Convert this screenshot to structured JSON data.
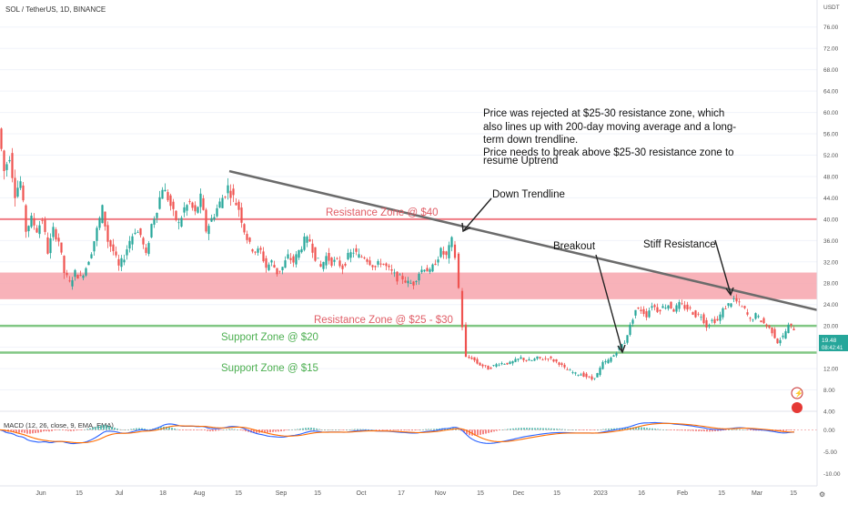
{
  "header": {
    "symbol_line": "SOL / TetherUS, 1D, BINANCE",
    "currency": "USDT"
  },
  "price_axis": {
    "ticks": [
      "76.00",
      "72.00",
      "68.00",
      "64.00",
      "60.00",
      "56.00",
      "52.00",
      "48.00",
      "44.00",
      "40.00",
      "36.00",
      "32.00",
      "28.00",
      "24.00",
      "20.00",
      "16.00",
      "12.00",
      "8.00",
      "4.00"
    ],
    "last_price": "19.48",
    "countdown": "08:42:41"
  },
  "macd_axis": {
    "ticks": [
      "0.00",
      "-5.00",
      "-10.00"
    ]
  },
  "time_axis": {
    "labels": [
      "Jun",
      "15",
      "Jul",
      "18",
      "Aug",
      "15",
      "Sep",
      "15",
      "Oct",
      "17",
      "Nov",
      "15",
      "Dec",
      "15",
      "2023",
      "16",
      "Feb",
      "15",
      "Mar",
      "15"
    ]
  },
  "annotations": {
    "main_note": [
      "Price was rejected at $25-30 resistance zone, which",
      "also lines up with 200-day moving average and a long-",
      "term down trendline.",
      "Price needs to break above $25-30 resistance zone to",
      "resume Uptrend"
    ],
    "down_trendline": "Down Trendline",
    "breakout": "Breakout",
    "stiff_resistance": "Stiff Resistance",
    "resistance_40": "Resistance Zone @ $40",
    "resistance_25_30": "Resistance Zone @ $25 - $30",
    "support_20": "Support Zone @ $20",
    "support_15": "Support Zone @ $15"
  },
  "macd_panel": {
    "label": "MACD (12, 26, close, 9, EMA, EMA)"
  },
  "chart_data": {
    "type": "candlestick",
    "symbol": "SOL / TetherUS",
    "interval": "1D",
    "exchange": "BINANCE",
    "ylim": [
      4,
      78
    ],
    "price_series": [
      [
        0,
        57
      ],
      [
        6,
        49
      ],
      [
        12,
        52
      ],
      [
        18,
        45
      ],
      [
        24,
        47
      ],
      [
        30,
        38
      ],
      [
        36,
        40
      ],
      [
        42,
        38
      ],
      [
        48,
        40
      ],
      [
        54,
        34
      ],
      [
        60,
        38
      ],
      [
        66,
        36
      ],
      [
        72,
        30
      ],
      [
        78,
        28
      ],
      [
        84,
        30
      ],
      [
        90,
        29
      ],
      [
        96,
        31
      ],
      [
        102,
        34
      ],
      [
        108,
        38
      ],
      [
        114,
        42
      ],
      [
        120,
        36
      ],
      [
        126,
        34
      ],
      [
        132,
        31
      ],
      [
        138,
        33
      ],
      [
        144,
        36
      ],
      [
        150,
        38
      ],
      [
        156,
        37
      ],
      [
        162,
        33
      ],
      [
        168,
        39
      ],
      [
        174,
        42
      ],
      [
        180,
        46
      ],
      [
        186,
        44
      ],
      [
        192,
        41
      ],
      [
        198,
        39
      ],
      [
        204,
        42
      ],
      [
        210,
        43
      ],
      [
        216,
        41
      ],
      [
        222,
        44
      ],
      [
        228,
        38
      ],
      [
        234,
        40
      ],
      [
        240,
        42
      ],
      [
        246,
        44
      ],
      [
        252,
        46
      ],
      [
        258,
        44
      ],
      [
        264,
        42
      ],
      [
        270,
        38
      ],
      [
        276,
        35
      ],
      [
        282,
        34
      ],
      [
        288,
        34
      ],
      [
        294,
        31
      ],
      [
        300,
        32
      ],
      [
        306,
        30
      ],
      [
        312,
        31
      ],
      [
        318,
        33
      ],
      [
        324,
        32
      ],
      [
        330,
        34
      ],
      [
        336,
        36
      ],
      [
        342,
        36
      ],
      [
        348,
        33
      ],
      [
        354,
        31
      ],
      [
        360,
        33
      ],
      [
        366,
        32
      ],
      [
        372,
        32
      ],
      [
        378,
        31
      ],
      [
        384,
        33
      ],
      [
        390,
        34
      ],
      [
        396,
        33
      ],
      [
        402,
        33
      ],
      [
        408,
        32
      ],
      [
        414,
        31
      ],
      [
        420,
        32
      ],
      [
        426,
        31
      ],
      [
        432,
        30
      ],
      [
        438,
        29
      ],
      [
        444,
        29
      ],
      [
        450,
        28
      ],
      [
        456,
        28
      ],
      [
        462,
        30
      ],
      [
        468,
        31
      ],
      [
        474,
        30
      ],
      [
        480,
        32
      ],
      [
        486,
        34
      ],
      [
        492,
        33
      ],
      [
        498,
        36
      ],
      [
        502,
        33
      ],
      [
        506,
        27
      ],
      [
        510,
        20
      ],
      [
        514,
        14
      ],
      [
        520,
        14
      ],
      [
        526,
        13
      ],
      [
        532,
        12.5
      ],
      [
        538,
        12
      ],
      [
        544,
        12.5
      ],
      [
        550,
        13
      ],
      [
        556,
        13
      ],
      [
        562,
        13
      ],
      [
        568,
        13.5
      ],
      [
        574,
        14
      ],
      [
        580,
        13.5
      ],
      [
        586,
        13.5
      ],
      [
        592,
        14
      ],
      [
        598,
        13.8
      ],
      [
        604,
        14
      ],
      [
        610,
        13.5
      ],
      [
        616,
        13
      ],
      [
        622,
        12
      ],
      [
        628,
        11.5
      ],
      [
        634,
        11
      ],
      [
        640,
        11
      ],
      [
        646,
        10.5
      ],
      [
        652,
        10
      ],
      [
        658,
        11
      ],
      [
        664,
        13
      ],
      [
        670,
        13.5
      ],
      [
        676,
        14.5
      ],
      [
        682,
        16
      ],
      [
        688,
        17
      ],
      [
        694,
        20
      ],
      [
        700,
        23
      ],
      [
        706,
        23
      ],
      [
        712,
        22
      ],
      [
        718,
        24
      ],
      [
        724,
        23
      ],
      [
        730,
        23.5
      ],
      [
        736,
        24
      ],
      [
        742,
        23
      ],
      [
        748,
        24
      ],
      [
        754,
        23.5
      ],
      [
        760,
        23
      ],
      [
        766,
        22
      ],
      [
        772,
        22
      ],
      [
        778,
        20
      ],
      [
        784,
        21
      ],
      [
        790,
        21
      ],
      [
        796,
        23
      ],
      [
        802,
        24
      ],
      [
        808,
        25
      ],
      [
        814,
        24
      ],
      [
        820,
        23
      ],
      [
        826,
        21
      ],
      [
        832,
        22
      ],
      [
        838,
        21
      ],
      [
        844,
        20
      ],
      [
        850,
        19
      ],
      [
        856,
        17
      ],
      [
        862,
        18
      ],
      [
        868,
        20
      ],
      [
        874,
        19.48
      ]
    ],
    "resistance_zones": [
      {
        "label": "Resistance Zone @ $40",
        "price": 40
      },
      {
        "label": "Resistance Zone @ $25 - $30",
        "low": 25,
        "high": 30
      }
    ],
    "support_zones": [
      {
        "label": "Support Zone @ $20",
        "price": 20
      },
      {
        "label": "Support Zone @ $15",
        "price": 15
      }
    ],
    "trendline": {
      "label": "Down Trendline",
      "from_price": 49,
      "to_price": 24
    },
    "macd": {
      "label": "MACD (12, 26, close, 9, EMA, EMA)",
      "ylim": [
        -12,
        3
      ]
    }
  }
}
